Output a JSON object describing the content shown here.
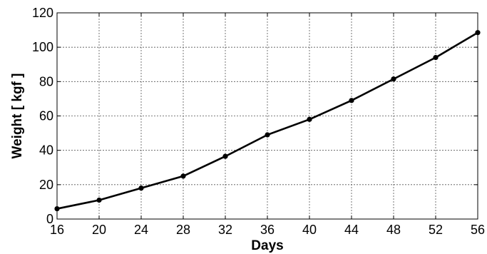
{
  "chart_data": {
    "type": "line",
    "xlabel": "Days",
    "ylabel": "Weight [ kgf ]",
    "xlim": [
      16,
      56
    ],
    "ylim": [
      0,
      120
    ],
    "x_ticks": [
      "16",
      "20",
      "24",
      "28",
      "32",
      "36",
      "40",
      "44",
      "48",
      "52",
      "56"
    ],
    "y_ticks": [
      "0",
      "20",
      "40",
      "60",
      "80",
      "100",
      "120"
    ],
    "grid": true,
    "series": [
      {
        "x": [
          16,
          20,
          24,
          28,
          32,
          36,
          40,
          44,
          48,
          52,
          56
        ],
        "values": [
          6,
          11,
          18,
          25,
          36.5,
          49,
          58,
          69,
          81.5,
          94,
          108.5
        ],
        "color": "#000000",
        "marker": "circle"
      }
    ]
  }
}
